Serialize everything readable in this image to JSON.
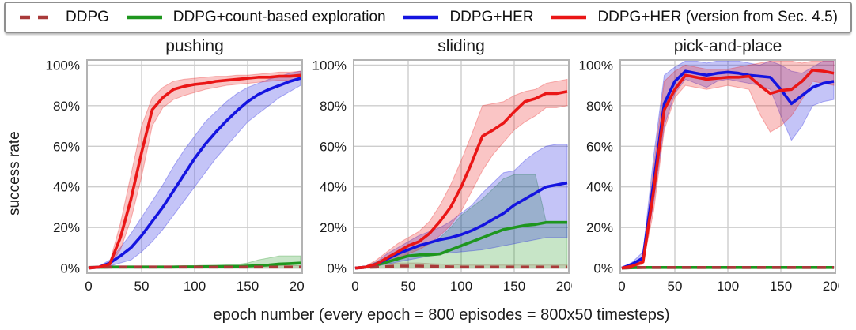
{
  "legend": {
    "items": [
      {
        "label": "DDPG",
        "color": "#a93a3a",
        "dash": true
      },
      {
        "label": "DDPG+count-based exploration",
        "color": "#1e961e",
        "dash": false
      },
      {
        "label": "DDPG+HER",
        "color": "#1414e0",
        "dash": false
      },
      {
        "label": "DDPG+HER (version from Sec. 4.5)",
        "color": "#ea1616",
        "dash": false
      }
    ]
  },
  "axes": {
    "x_label": "epoch number (every epoch = 800 episodes = 800x50 timesteps)",
    "y_label": "success rate"
  },
  "style": {
    "grid_color": "#cdcdcd",
    "border_color": "#b3b3b3",
    "tick_color": "#1a1a1a",
    "band_opacity": 0.25,
    "ddpg_band_opacity": 0.14
  },
  "chart_data": [
    {
      "type": "line",
      "title": "pushing",
      "xlabel": "epoch number (every epoch = 800 episodes = 800x50 timesteps)",
      "ylabel": "success rate",
      "xlim": [
        0,
        200
      ],
      "ylim": [
        0,
        100
      ],
      "grid": true,
      "x": [
        0,
        10,
        20,
        30,
        40,
        50,
        60,
        70,
        80,
        90,
        100,
        110,
        120,
        130,
        140,
        150,
        160,
        170,
        180,
        190,
        200
      ],
      "x_tick_values": [
        0,
        50,
        100,
        150,
        200
      ],
      "x_tick_labels": [
        "0",
        "50",
        "100",
        "150",
        "200"
      ],
      "y_tick_values": [
        0,
        20,
        40,
        60,
        80,
        100
      ],
      "y_tick_labels": [
        "0%",
        "20%",
        "40%",
        "60%",
        "80%",
        "100%"
      ],
      "series": [
        {
          "name": "DDPG",
          "color": "#a93a3a",
          "dash": true,
          "values": [
            0.3,
            0.4,
            0.5,
            0.5,
            0.5,
            0.5,
            0.5,
            0.5,
            0.5,
            0.5,
            0.5,
            0.5,
            0.5,
            0.5,
            0.5,
            0.5,
            0.5,
            0.5,
            0.5,
            0.5,
            0.5
          ],
          "band_lower": [
            0,
            0,
            0,
            0,
            0,
            0,
            0,
            0,
            0,
            0,
            0,
            0,
            0,
            0,
            0,
            0,
            0,
            0,
            0,
            0,
            0
          ],
          "band_upper": [
            0.8,
            1,
            1.2,
            1.2,
            1.2,
            1.2,
            1.2,
            1.2,
            1.2,
            1.2,
            1.2,
            1.2,
            1.2,
            1.2,
            1.2,
            1.2,
            1.2,
            1.2,
            1.2,
            1.2,
            1.2
          ]
        },
        {
          "name": "DDPG+count-based exploration",
          "color": "#1e961e",
          "dash": false,
          "values": [
            0.3,
            0.4,
            0.5,
            0.5,
            0.5,
            0.5,
            0.5,
            0.5,
            0.5,
            0.6,
            0.6,
            0.7,
            0.7,
            0.8,
            0.8,
            1.0,
            1.2,
            1.5,
            2.0,
            2.2,
            2.5
          ],
          "band_lower": [
            0,
            0,
            0,
            0,
            0,
            0,
            0,
            0,
            0,
            0,
            0,
            0,
            0,
            0,
            0,
            0,
            0,
            0,
            0,
            0,
            0
          ],
          "band_upper": [
            0.6,
            0.8,
            1,
            1,
            1,
            1,
            1,
            1,
            1,
            1.2,
            1.2,
            1.4,
            1.5,
            1.6,
            1.8,
            2.5,
            4,
            5,
            6,
            6,
            6
          ]
        },
        {
          "name": "DDPG+HER",
          "color": "#1414e0",
          "dash": false,
          "values": [
            0,
            0.5,
            2.5,
            6,
            10,
            16,
            23,
            30,
            38,
            46,
            54,
            61,
            67,
            72.5,
            77.5,
            82,
            85.5,
            88,
            90,
            92,
            93.5
          ],
          "band_lower": [
            0,
            0,
            1,
            2.5,
            4,
            8,
            13,
            19,
            26,
            33,
            40,
            47,
            54,
            60,
            66,
            72,
            76,
            80,
            84,
            87,
            90
          ],
          "band_upper": [
            0,
            1,
            4,
            10,
            17,
            25,
            33,
            41,
            50,
            58,
            65,
            72,
            77,
            82,
            86,
            89,
            91,
            93,
            94.5,
            96,
            97
          ]
        },
        {
          "name": "DDPG+HER (version from Sec. 4.5)",
          "color": "#ea1616",
          "dash": false,
          "values": [
            0,
            0.5,
            2,
            15,
            34,
            57,
            78,
            84,
            88,
            89.5,
            90.5,
            91,
            92,
            92.5,
            93,
            93.5,
            94,
            94,
            94.5,
            94.5,
            95
          ],
          "band_lower": [
            0,
            0,
            1,
            9,
            24,
            45,
            70,
            79,
            83,
            85,
            86.5,
            88,
            89,
            90,
            90.5,
            91,
            91.5,
            92,
            92.5,
            92.5,
            93
          ],
          "band_upper": [
            0,
            1,
            3,
            22,
            46,
            70,
            84,
            89,
            92,
            93,
            93.5,
            94,
            94.5,
            94.5,
            95,
            95,
            95.5,
            96,
            96.5,
            96.5,
            97
          ]
        }
      ]
    },
    {
      "type": "line",
      "title": "sliding",
      "xlabel": "epoch number (every epoch = 800 episodes = 800x50 timesteps)",
      "ylabel": "success rate",
      "xlim": [
        0,
        200
      ],
      "ylim": [
        0,
        100
      ],
      "grid": true,
      "x": [
        0,
        10,
        20,
        30,
        40,
        50,
        60,
        70,
        80,
        90,
        100,
        110,
        120,
        130,
        140,
        150,
        160,
        170,
        180,
        190,
        200
      ],
      "x_tick_values": [
        0,
        50,
        100,
        150,
        200
      ],
      "x_tick_labels": [
        "0",
        "50",
        "100",
        "150",
        "200"
      ],
      "y_tick_values": [
        0,
        20,
        40,
        60,
        80,
        100
      ],
      "y_tick_labels": [
        "0%",
        "20%",
        "40%",
        "60%",
        "80%",
        "100%"
      ],
      "series": [
        {
          "name": "DDPG",
          "color": "#a93a3a",
          "dash": true,
          "values": [
            0,
            0.3,
            0.5,
            0.8,
            1,
            1,
            1,
            0.9,
            0.8,
            0.6,
            0.5,
            0.5,
            0.5,
            0.5,
            0.5,
            0.5,
            0.5,
            0.5,
            0.5,
            0.5,
            0.5
          ],
          "band_lower": [
            0,
            0,
            0,
            0,
            0,
            0,
            0,
            0,
            0,
            0,
            0,
            0,
            0,
            0,
            0,
            0,
            0,
            0,
            0,
            0,
            0
          ],
          "band_upper": [
            0.5,
            1,
            1.5,
            2,
            2.5,
            2.5,
            2.5,
            2.2,
            2,
            1.8,
            1.5,
            1.5,
            1.5,
            1.5,
            1.5,
            1.5,
            1.5,
            1.5,
            1.5,
            1.5,
            1.5
          ]
        },
        {
          "name": "DDPG+count-based exploration",
          "color": "#1e961e",
          "dash": false,
          "values": [
            0,
            0.5,
            1.5,
            3,
            4.5,
            6,
            6.5,
            6.5,
            7,
            9,
            11,
            13,
            15,
            17,
            19,
            20,
            21,
            21.5,
            22.5,
            22.5,
            22.5
          ],
          "band_lower": [
            0,
            0,
            0,
            0,
            0,
            0,
            0,
            0,
            0,
            0,
            0,
            0,
            0,
            0,
            0,
            0,
            0,
            0,
            0,
            0,
            0
          ],
          "band_upper": [
            0,
            1,
            3,
            5,
            7,
            9,
            11,
            12,
            15,
            20,
            26,
            30,
            34,
            39,
            44,
            46,
            46,
            46,
            23,
            23,
            23
          ]
        },
        {
          "name": "DDPG+HER",
          "color": "#1414e0",
          "dash": false,
          "values": [
            0,
            0.5,
            2,
            4.5,
            7,
            9,
            11,
            12.5,
            14,
            15,
            16.5,
            18.5,
            21,
            24,
            27,
            31,
            34,
            37,
            40,
            41,
            42
          ],
          "band_lower": [
            0,
            0,
            1,
            2,
            3,
            4,
            5,
            6,
            7,
            7.5,
            8,
            8.5,
            9,
            10,
            11,
            12,
            13,
            14,
            15,
            15,
            15
          ],
          "band_upper": [
            0,
            1,
            3,
            7,
            10,
            13,
            16,
            18,
            20,
            23,
            27,
            31,
            37,
            42,
            47,
            48,
            53,
            57,
            60,
            61,
            61
          ]
        },
        {
          "name": "DDPG+HER (version from Sec. 4.5)",
          "color": "#ea1616",
          "dash": false,
          "values": [
            0,
            0.5,
            2,
            5,
            8,
            11,
            13,
            17,
            23,
            30,
            40,
            52,
            65,
            68,
            71.5,
            77,
            82,
            83.5,
            86,
            86,
            87
          ],
          "band_lower": [
            0,
            0,
            1,
            3,
            5,
            7,
            9,
            12,
            16,
            21,
            28,
            38,
            48,
            56,
            62,
            68,
            72,
            75,
            79,
            79,
            80
          ],
          "band_upper": [
            0,
            1,
            4,
            8,
            12,
            15,
            18,
            23,
            31,
            41,
            53,
            66,
            80,
            81,
            82,
            85,
            87,
            88,
            91,
            92,
            93
          ]
        }
      ]
    },
    {
      "type": "line",
      "title": "pick-and-place",
      "xlabel": "epoch number (every epoch = 800 episodes = 800x50 timesteps)",
      "ylabel": "success rate",
      "xlim": [
        0,
        200
      ],
      "ylim": [
        0,
        100
      ],
      "grid": true,
      "x": [
        0,
        10,
        20,
        30,
        40,
        50,
        60,
        70,
        80,
        90,
        100,
        110,
        120,
        130,
        140,
        150,
        160,
        170,
        180,
        190,
        200
      ],
      "x_tick_values": [
        0,
        50,
        100,
        150,
        200
      ],
      "x_tick_labels": [
        "0",
        "50",
        "100",
        "150",
        "200"
      ],
      "y_tick_values": [
        0,
        20,
        40,
        60,
        80,
        100
      ],
      "y_tick_labels": [
        "0%",
        "20%",
        "40%",
        "60%",
        "80%",
        "100%"
      ],
      "series": [
        {
          "name": "DDPG",
          "color": "#a93a3a",
          "dash": true,
          "values": [
            0,
            0.2,
            0.3,
            0.3,
            0.3,
            0.3,
            0.3,
            0.3,
            0.3,
            0.3,
            0.3,
            0.3,
            0.3,
            0.3,
            0.3,
            0.3,
            0.3,
            0.3,
            0.3,
            0.3,
            0.3
          ],
          "band_lower": [
            0,
            0,
            0,
            0,
            0,
            0,
            0,
            0,
            0,
            0,
            0,
            0,
            0,
            0,
            0,
            0,
            0,
            0,
            0,
            0,
            0
          ],
          "band_upper": [
            0.5,
            0.8,
            0.8,
            0.8,
            0.8,
            0.8,
            0.8,
            0.8,
            0.8,
            0.8,
            0.8,
            0.8,
            0.8,
            0.8,
            0.8,
            0.8,
            0.8,
            0.8,
            0.8,
            0.8,
            0.8
          ]
        },
        {
          "name": "DDPG+count-based exploration",
          "color": "#1e961e",
          "dash": false,
          "values": [
            0,
            0.2,
            0.3,
            0.3,
            0.3,
            0.3,
            0.3,
            0.3,
            0.3,
            0.3,
            0.3,
            0.3,
            0.3,
            0.3,
            0.3,
            0.3,
            0.3,
            0.3,
            0.3,
            0.3,
            0.3
          ],
          "band_lower": [
            0,
            0,
            0,
            0,
            0,
            0,
            0,
            0,
            0,
            0,
            0,
            0,
            0,
            0,
            0,
            0,
            0,
            0,
            0,
            0,
            0
          ],
          "band_upper": [
            0.5,
            0.8,
            0.8,
            0.8,
            0.8,
            0.8,
            0.8,
            0.8,
            0.8,
            0.8,
            0.8,
            0.8,
            0.8,
            0.8,
            0.8,
            0.8,
            0.8,
            0.8,
            0.8,
            0.8,
            0.8
          ]
        },
        {
          "name": "DDPG+HER",
          "color": "#1414e0",
          "dash": false,
          "values": [
            0,
            2,
            5,
            42,
            81,
            92,
            97,
            96,
            95,
            96,
            96.5,
            96,
            95,
            94.5,
            94,
            88,
            81,
            85,
            89,
            91,
            92
          ],
          "band_lower": [
            0,
            1,
            3,
            32,
            70,
            86,
            93,
            91,
            89,
            92,
            93,
            92,
            91,
            90,
            88,
            75,
            63,
            70,
            80,
            82,
            83
          ],
          "band_upper": [
            0,
            3,
            8,
            55,
            95,
            99,
            102,
            102,
            101,
            102,
            102,
            102,
            101,
            100,
            102,
            100,
            97,
            96,
            99,
            102,
            102
          ]
        },
        {
          "name": "DDPG+HER (version from Sec. 4.5)",
          "color": "#ea1616",
          "dash": false,
          "values": [
            0,
            1,
            3,
            38,
            78,
            88,
            95,
            94,
            93,
            93.5,
            94,
            94,
            94.5,
            90,
            86,
            87.5,
            88,
            92,
            97.5,
            97,
            96
          ],
          "band_lower": [
            0,
            0,
            2,
            28,
            68,
            84,
            90,
            89,
            88,
            89,
            90,
            89,
            88,
            76,
            67,
            70,
            75,
            83,
            92,
            91,
            90
          ],
          "band_upper": [
            0,
            2,
            5,
            50,
            92,
            97,
            100,
            99,
            98,
            98,
            98,
            99,
            100,
            101,
            102,
            102,
            102,
            101,
            102,
            102,
            102
          ]
        }
      ]
    }
  ]
}
